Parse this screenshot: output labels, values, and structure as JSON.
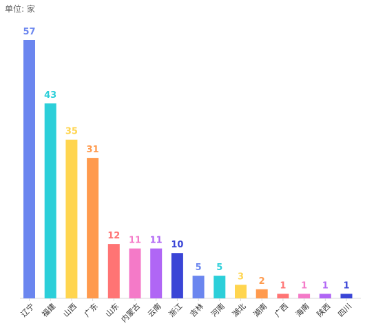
{
  "chart_data": {
    "type": "bar",
    "unit_label": "单位: 家",
    "title": "",
    "xlabel": "",
    "ylabel": "",
    "ylim": [
      0,
      57
    ],
    "grid": false,
    "legend": "none",
    "categories": [
      "辽宁",
      "福建",
      "山西",
      "广东",
      "山东",
      "内蒙古",
      "云南",
      "浙江",
      "吉林",
      "河南",
      "湖北",
      "湖南",
      "广西",
      "海南",
      "陕西",
      "四川"
    ],
    "values": [
      57,
      43,
      35,
      31,
      12,
      11,
      11,
      10,
      5,
      5,
      3,
      2,
      1,
      1,
      1,
      1
    ],
    "colors": [
      "#6b86ef",
      "#2ccfd9",
      "#ffd54f",
      "#ff9a4d",
      "#ff7474",
      "#f47ac8",
      "#b066f5",
      "#3a45d6",
      "#6b86ef",
      "#2ccfd9",
      "#ffd54f",
      "#ff9a4d",
      "#ff7474",
      "#f47ac8",
      "#b066f5",
      "#3a45d6"
    ]
  }
}
